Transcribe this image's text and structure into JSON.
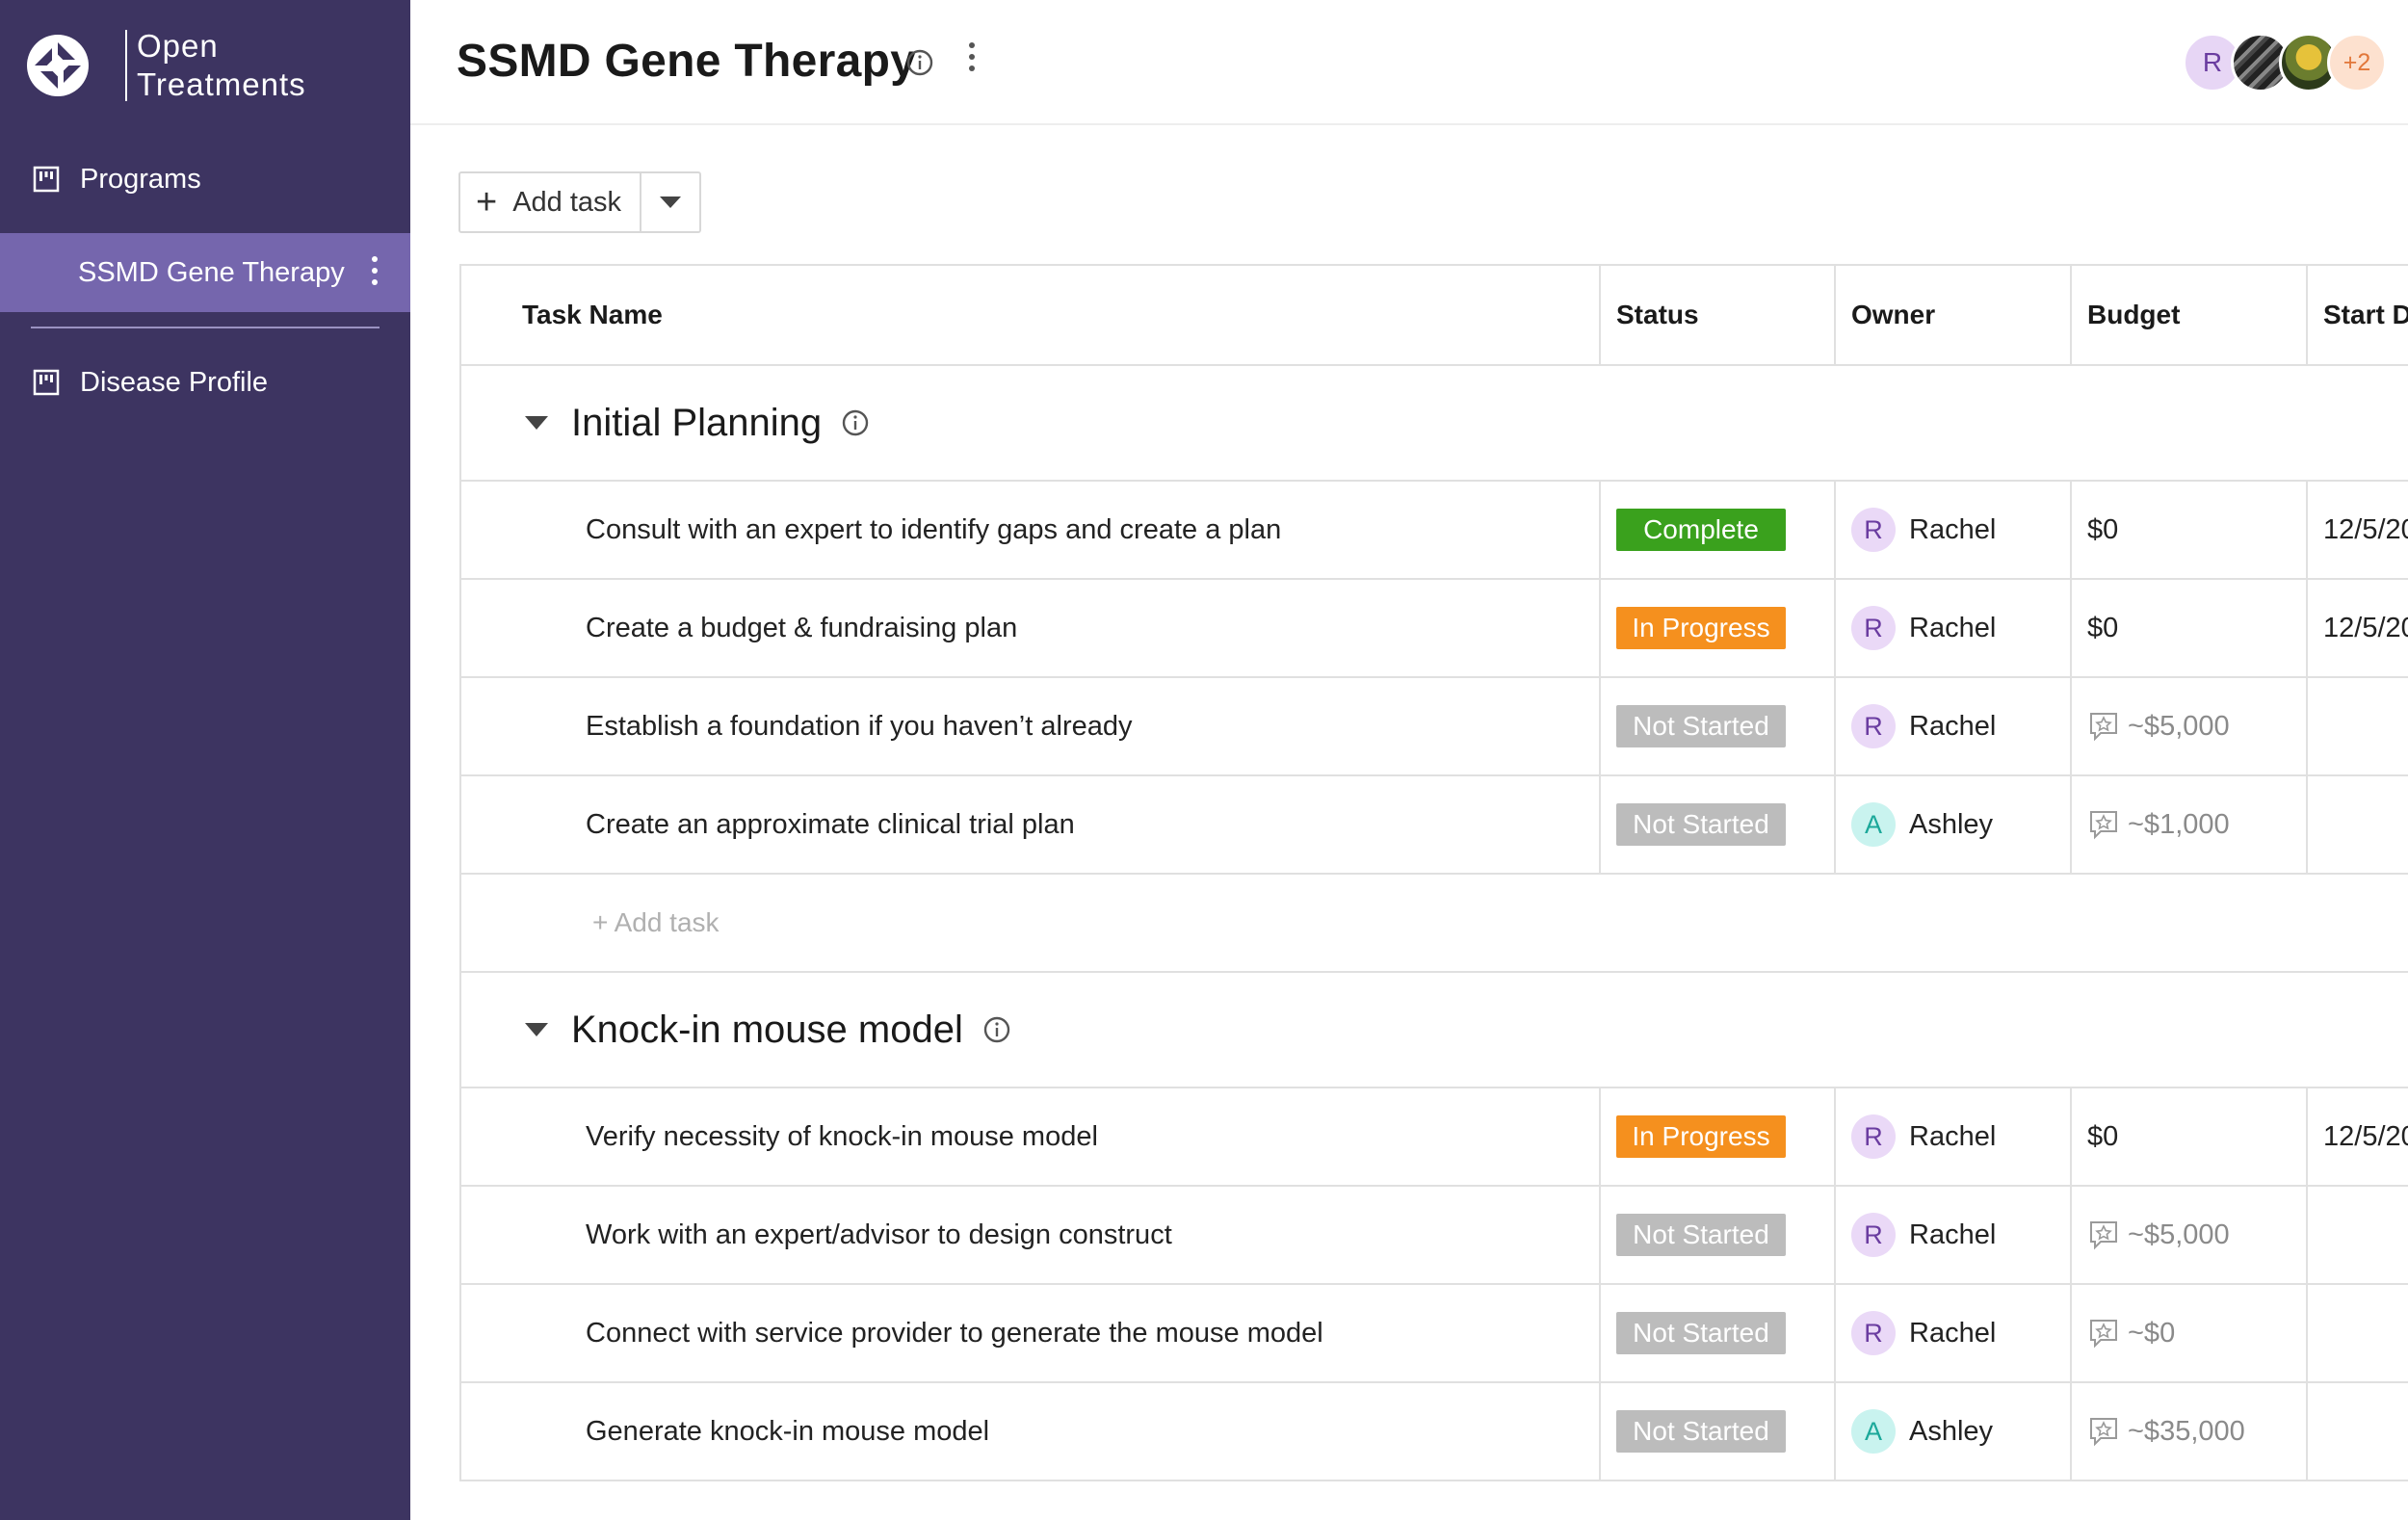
{
  "sidebar": {
    "brand_line1": "Open",
    "brand_line2": "Treatments",
    "programs_label": "Programs",
    "active_item_label": "SSMD Gene Therapy",
    "disease_profile_label": "Disease Profile"
  },
  "header": {
    "title": "SSMD Gene Therapy",
    "avatars": [
      {
        "initial": "R"
      },
      {
        "initial": ""
      },
      {
        "initial": ""
      },
      {
        "initial": "+2"
      }
    ]
  },
  "toolbar": {
    "add_task_label": "Add task"
  },
  "table": {
    "columns": [
      "Task Name",
      "Status",
      "Owner",
      "Budget",
      "Start Da"
    ],
    "groups": [
      {
        "title": "Initial Planning",
        "add_task_label": "+ Add task",
        "rows": [
          {
            "name": "Consult with an expert to identify gaps and create a plan",
            "status": "Complete",
            "owner_initial": "R",
            "owner": "Rachel",
            "budget": "$0",
            "start": "12/5/20"
          },
          {
            "name": "Create a budget & fundraising plan",
            "status": "In Progress",
            "owner_initial": "R",
            "owner": "Rachel",
            "budget": "$0",
            "start": "12/5/20"
          },
          {
            "name": "Establish a foundation if you haven’t already",
            "status": "Not Started",
            "owner_initial": "R",
            "owner": "Rachel",
            "budget": "~$5,000",
            "start": ""
          },
          {
            "name": "Create an approximate clinical trial plan",
            "status": "Not Started",
            "owner_initial": "A",
            "owner": "Ashley",
            "budget": "~$1,000",
            "start": ""
          }
        ]
      },
      {
        "title": "Knock-in mouse model",
        "rows": [
          {
            "name": "Verify necessity of knock-in mouse model",
            "status": "In Progress",
            "owner_initial": "R",
            "owner": "Rachel",
            "budget": "$0",
            "start": "12/5/20"
          },
          {
            "name": "Work with an expert/advisor to design construct",
            "status": "Not Started",
            "owner_initial": "R",
            "owner": "Rachel",
            "budget": "~$5,000",
            "start": ""
          },
          {
            "name": "Connect with service provider to generate the mouse model",
            "status": "Not Started",
            "owner_initial": "R",
            "owner": "Rachel",
            "budget": "~$0",
            "start": ""
          },
          {
            "name": "Generate knock-in mouse model",
            "status": "Not Started",
            "owner_initial": "A",
            "owner": "Ashley",
            "budget": "~$35,000",
            "start": ""
          }
        ]
      }
    ]
  },
  "colors": {
    "sidebar_bg": "#3d3461",
    "sidebar_active": "#7566ad",
    "complete": "#3aa11d",
    "in_progress": "#f5901e",
    "not_started": "#bcbcbc"
  }
}
